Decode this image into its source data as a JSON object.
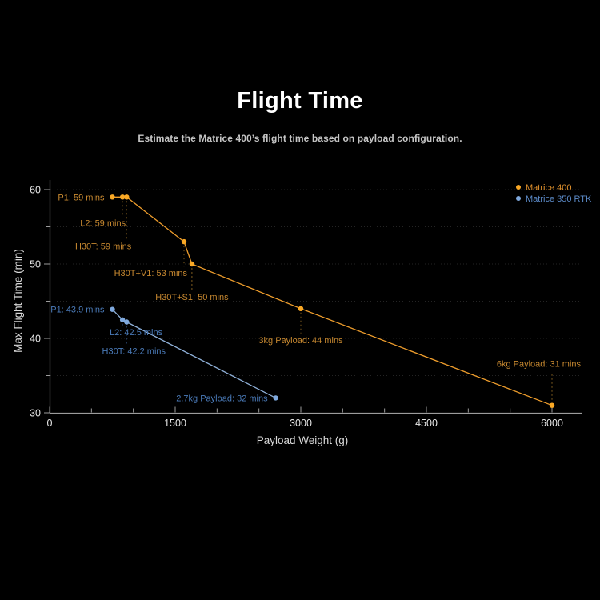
{
  "page": {
    "title": "Flight Time",
    "subtitle": "Estimate the Matrice 400’s flight time based on payload configuration."
  },
  "chart_data": {
    "type": "line",
    "title": "Flight Time",
    "subtitle": "Estimate the Matrice 400’s flight time based on payload configuration.",
    "xlabel": "Payload Weight (g)",
    "ylabel": "Max Flight Time (min)",
    "xlim": [
      0,
      6365
    ],
    "ylim": [
      30,
      61.3
    ],
    "x_ticks_major": [
      0,
      1500,
      3000,
      4500,
      6000
    ],
    "x_ticks_minor": [
      500,
      1000,
      2000,
      2500,
      3500,
      4000,
      5000,
      5500
    ],
    "y_ticks_major": [
      30,
      40,
      50,
      60
    ],
    "y_ticks_minor": [
      35,
      45,
      55
    ],
    "grid_lines_y": [
      35,
      40,
      45,
      50,
      55,
      60
    ],
    "grid": "horizontal-dotted",
    "legend_position": "top-right",
    "colors": {
      "background": "#000000",
      "axis": "#9c9c9c",
      "tick_label": "#e6e6e6",
      "axis_title": "#d9d9d9",
      "grid": "#242424"
    },
    "series": [
      {
        "name": "Matrice 400",
        "line_color": "#ee9d2c",
        "point_color": "#f9a825",
        "label_color": "#c88930",
        "legend_color": "#e5942d",
        "connector_color": "#7d5a1e",
        "points": [
          {
            "x": 750,
            "y": 59,
            "label": "P1: 59 mins",
            "dx": -10,
            "dy": 4,
            "anchor": "end",
            "connector": false
          },
          {
            "x": 870,
            "y": 59,
            "label": "L2: 59 mins",
            "dx": 4,
            "dy": 36,
            "anchor": "end",
            "connector": true
          },
          {
            "x": 920,
            "y": 59,
            "label": "H30T: 59 mins",
            "dx": 6,
            "dy": 65,
            "anchor": "end",
            "connector": true
          },
          {
            "x": 1605,
            "y": 53,
            "label": "H30T+V1: 53 mins",
            "dx": 4,
            "dy": 43,
            "anchor": "end",
            "connector": true
          },
          {
            "x": 1700,
            "y": 50,
            "label": "H30T+S1: 50 mins",
            "dx": 0,
            "dy": 45,
            "anchor": "middle",
            "connector": true
          },
          {
            "x": 3000,
            "y": 44,
            "label": "3kg Payload: 44 mins",
            "dx": 0,
            "dy": 43,
            "anchor": "middle",
            "connector": true
          },
          {
            "x": 6000,
            "y": 31,
            "label": "6kg Payload: 31 mins",
            "dx": 36,
            "dy": -48,
            "anchor": "end",
            "connector": true
          }
        ]
      },
      {
        "name": "Matrice 350 RTK",
        "line_color": "#8fb0d8",
        "point_color": "#7fa9de",
        "label_color": "#4a7ab8",
        "legend_color": "#5c8bc9",
        "connector_color": "#2c4a75",
        "points": [
          {
            "x": 750,
            "y": 43.9,
            "label": "P1: 43.9 mins",
            "dx": -10,
            "dy": 4,
            "anchor": "end",
            "connector": false
          },
          {
            "x": 870,
            "y": 42.5,
            "label": "L2: 42.5 mins",
            "dx": 17,
            "dy": 19,
            "anchor": "middle",
            "connector": true
          },
          {
            "x": 920,
            "y": 42.2,
            "label": "H30T: 42.2 mins",
            "dx": 9,
            "dy": 40,
            "anchor": "middle",
            "connector": true
          },
          {
            "x": 2700,
            "y": 32,
            "label": "2.7kg Payload: 32 mins",
            "dx": -10,
            "dy": 4,
            "anchor": "end",
            "connector": false
          }
        ]
      }
    ]
  }
}
